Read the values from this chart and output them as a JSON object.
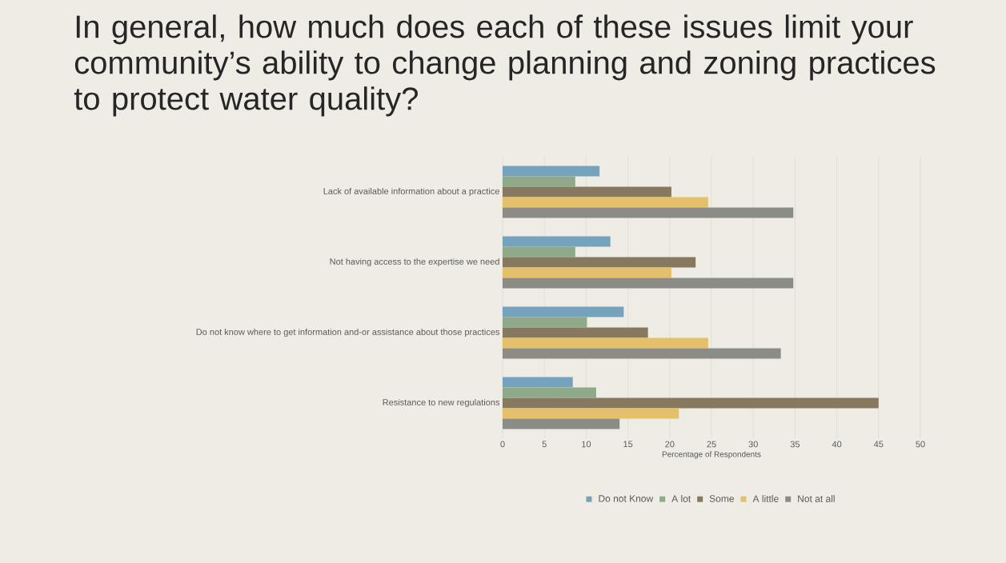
{
  "chart_data": {
    "type": "bar",
    "orientation": "horizontal",
    "title": "In general, how much does each of these issues limit your community’s ability to change planning and zoning practices to protect water quality?",
    "categories": [
      "Lack of available information about a practice",
      "Not having access to the expertise we need",
      "Do not know where to get information and-or assistance about those practices",
      "Resistance to new regulations"
    ],
    "series": [
      {
        "name": "Do not Know",
        "color": "#75a3bd",
        "values": [
          11.6,
          12.9,
          14.5,
          8.4
        ]
      },
      {
        "name": "A lot",
        "color": "#8eaa8b",
        "values": [
          8.7,
          8.7,
          10.1,
          11.2
        ]
      },
      {
        "name": "Some",
        "color": "#877960",
        "values": [
          20.2,
          23.1,
          17.4,
          45
        ]
      },
      {
        "name": "A little",
        "color": "#e5c06a",
        "values": [
          24.6,
          20.2,
          24.6,
          21.1
        ]
      },
      {
        "name": "Not at all",
        "color": "#8b8c86",
        "values": [
          34.8,
          34.8,
          33.3,
          14
        ]
      }
    ],
    "xlabel": "Percentage of Respondents",
    "xlim": [
      0,
      50
    ],
    "xticks": [
      0,
      5,
      10,
      15,
      20,
      25,
      30,
      35,
      40,
      45,
      50
    ],
    "grid": "x",
    "legend": "bottom"
  }
}
